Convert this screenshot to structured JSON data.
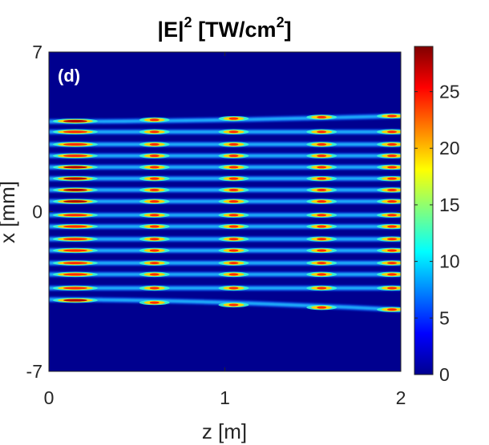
{
  "chart_data": {
    "type": "heatmap",
    "title_main": "|E|",
    "title_sup": "2",
    "title_unit_main": " [TW/cm",
    "title_unit_sup": "2",
    "title_unit_end": "]",
    "panel_label": "(d)",
    "xlabel": "z [m]",
    "ylabel": "x [mm]",
    "xlim": [
      0,
      2
    ],
    "ylim": [
      -7,
      7
    ],
    "x_ticks": [
      0,
      1,
      2
    ],
    "y_ticks": [
      -7,
      0,
      7
    ],
    "colorbar": {
      "colormap": "jet",
      "range": [
        0,
        29
      ],
      "ticks": [
        0,
        5,
        10,
        15,
        20,
        25
      ]
    },
    "background_color": "#00008f",
    "filaments": [
      {
        "x_start": 3.95,
        "x_end": 4.2,
        "peak_intensity": 29
      },
      {
        "x_start": 3.5,
        "x_end": 3.5,
        "peak_intensity": 27
      },
      {
        "x_start": 2.95,
        "x_end": 2.95,
        "peak_intensity": 27
      },
      {
        "x_start": 2.45,
        "x_end": 2.45,
        "peak_intensity": 27
      },
      {
        "x_start": 1.95,
        "x_end": 1.95,
        "peak_intensity": 28
      },
      {
        "x_start": 1.45,
        "x_end": 1.45,
        "peak_intensity": 28
      },
      {
        "x_start": 0.95,
        "x_end": 0.95,
        "peak_intensity": 28
      },
      {
        "x_start": 0.45,
        "x_end": 0.45,
        "peak_intensity": 28
      },
      {
        "x_start": -0.15,
        "x_end": -0.15,
        "peak_intensity": 27
      },
      {
        "x_start": -0.65,
        "x_end": -0.65,
        "peak_intensity": 27
      },
      {
        "x_start": -1.2,
        "x_end": -1.2,
        "peak_intensity": 27
      },
      {
        "x_start": -1.7,
        "x_end": -1.7,
        "peak_intensity": 27
      },
      {
        "x_start": -2.25,
        "x_end": -2.25,
        "peak_intensity": 27
      },
      {
        "x_start": -2.75,
        "x_end": -2.75,
        "peak_intensity": 27
      },
      {
        "x_start": -3.35,
        "x_end": -3.35,
        "peak_intensity": 27
      },
      {
        "x_start": -3.85,
        "x_end": -4.3,
        "peak_intensity": 29
      }
    ],
    "hotspot_z": [
      0.15,
      0.6,
      1.05,
      1.55,
      1.95
    ]
  }
}
